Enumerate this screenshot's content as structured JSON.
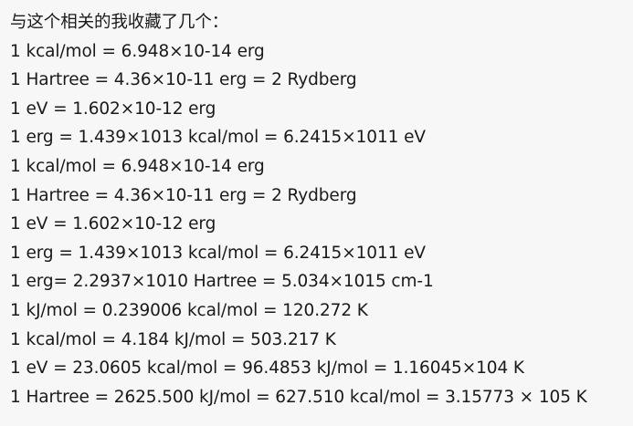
{
  "post": {
    "intro": "与这个相关的我收藏了几个：",
    "lines": [
      "1 kcal/mol = 6.948×10-14 erg",
      "1 Hartree = 4.36×10-11 erg = 2 Rydberg",
      "1 eV = 1.602×10-12 erg",
      "1 erg = 1.439×1013 kcal/mol = 6.2415×1011 eV",
      "1 kcal/mol = 6.948×10-14 erg",
      "1 Hartree = 4.36×10-11 erg = 2 Rydberg",
      "1 eV = 1.602×10-12 erg",
      "1 erg = 1.439×1013 kcal/mol = 6.2415×1011 eV",
      "1 erg= 2.2937×1010 Hartree = 5.034×1015 cm-1",
      "1 kJ/mol = 0.239006 kcal/mol = 120.272 K",
      "1 kcal/mol = 4.184 kJ/mol = 503.217 K",
      "1 eV = 23.0605 kcal/mol = 96.4853 kJ/mol = 1.16045×104 K",
      "1 Hartree = 2625.500 kJ/mol = 627.510 kcal/mol = 3.15773 × 105 K"
    ]
  }
}
